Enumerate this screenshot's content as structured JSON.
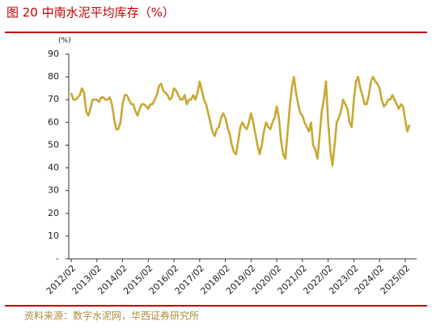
{
  "chart_data": {
    "type": "line",
    "title": "图 20 中南水泥平均库存（%）",
    "unit_label": "(%)",
    "source": "资料来源：数字水泥网，华西证券研究所",
    "x": [
      "2012/02",
      null,
      null,
      null,
      null,
      null,
      null,
      null,
      null,
      null,
      null,
      null,
      "2013/02",
      null,
      null,
      null,
      null,
      null,
      null,
      null,
      null,
      null,
      null,
      null,
      "2014/02",
      null,
      null,
      null,
      null,
      null,
      null,
      null,
      null,
      null,
      null,
      null,
      "2015/02",
      null,
      null,
      null,
      null,
      null,
      null,
      null,
      null,
      null,
      null,
      null,
      "2016/02",
      null,
      null,
      null,
      null,
      null,
      null,
      null,
      null,
      null,
      null,
      null,
      "2017/02",
      null,
      null,
      null,
      null,
      null,
      null,
      null,
      null,
      null,
      null,
      null,
      "2018/02",
      null,
      null,
      null,
      null,
      null,
      null,
      null,
      null,
      null,
      null,
      null,
      "2019/02",
      null,
      null,
      null,
      null,
      null,
      null,
      null,
      null,
      null,
      null,
      null,
      "2020/02",
      null,
      null,
      null,
      null,
      null,
      null,
      null,
      null,
      null,
      null,
      null,
      "2021/02",
      null,
      null,
      null,
      null,
      null,
      null,
      null,
      null,
      null,
      null,
      null,
      "2022/02",
      null,
      null,
      null,
      null,
      null,
      null,
      null,
      null,
      null,
      null,
      null,
      "2023/02",
      null,
      null,
      null,
      null,
      null,
      null,
      null,
      null,
      null,
      null,
      null,
      "2024/02",
      null,
      null,
      null,
      null,
      null,
      null,
      null,
      null,
      null,
      null,
      null,
      "2025/02",
      null,
      null
    ],
    "series": [
      {
        "name": "中南水泥平均库存",
        "color": "#c8a832",
        "values": [
          73,
          70,
          70,
          71,
          72,
          75,
          73,
          65,
          63,
          66,
          70,
          70,
          70,
          69,
          71,
          71,
          70,
          70,
          71,
          68,
          62,
          57,
          57,
          60,
          68,
          72,
          72,
          70,
          68,
          68,
          65,
          63,
          66,
          68,
          68,
          67,
          66,
          68,
          68,
          70,
          72,
          76,
          77,
          74,
          73,
          72,
          70,
          71,
          75,
          74,
          72,
          70,
          70,
          72,
          68,
          70,
          70,
          72,
          70,
          73,
          78,
          74,
          70,
          68,
          64,
          60,
          56,
          54,
          57,
          58,
          62,
          64,
          62,
          58,
          55,
          50,
          47,
          46,
          52,
          58,
          60,
          58,
          57,
          60,
          64,
          60,
          55,
          50,
          46,
          50,
          56,
          60,
          58,
          57,
          60,
          62,
          67,
          62,
          52,
          46,
          44,
          55,
          66,
          75,
          80,
          73,
          68,
          64,
          63,
          60,
          58,
          56,
          60,
          50,
          48,
          44,
          54,
          65,
          70,
          78,
          60,
          48,
          41,
          50,
          60,
          62,
          65,
          70,
          68,
          66,
          60,
          58,
          70,
          78,
          80,
          75,
          72,
          68,
          68,
          72,
          78,
          80,
          78,
          77,
          75,
          70,
          67,
          68,
          70,
          70,
          72,
          70,
          68,
          66,
          68,
          67,
          61,
          56,
          59
        ]
      }
    ],
    "ylim": [
      0,
      90
    ],
    "yticks": [
      {
        "value": 0,
        "label": "-"
      },
      10,
      20,
      30,
      40,
      50,
      60,
      70,
      80,
      90
    ]
  }
}
